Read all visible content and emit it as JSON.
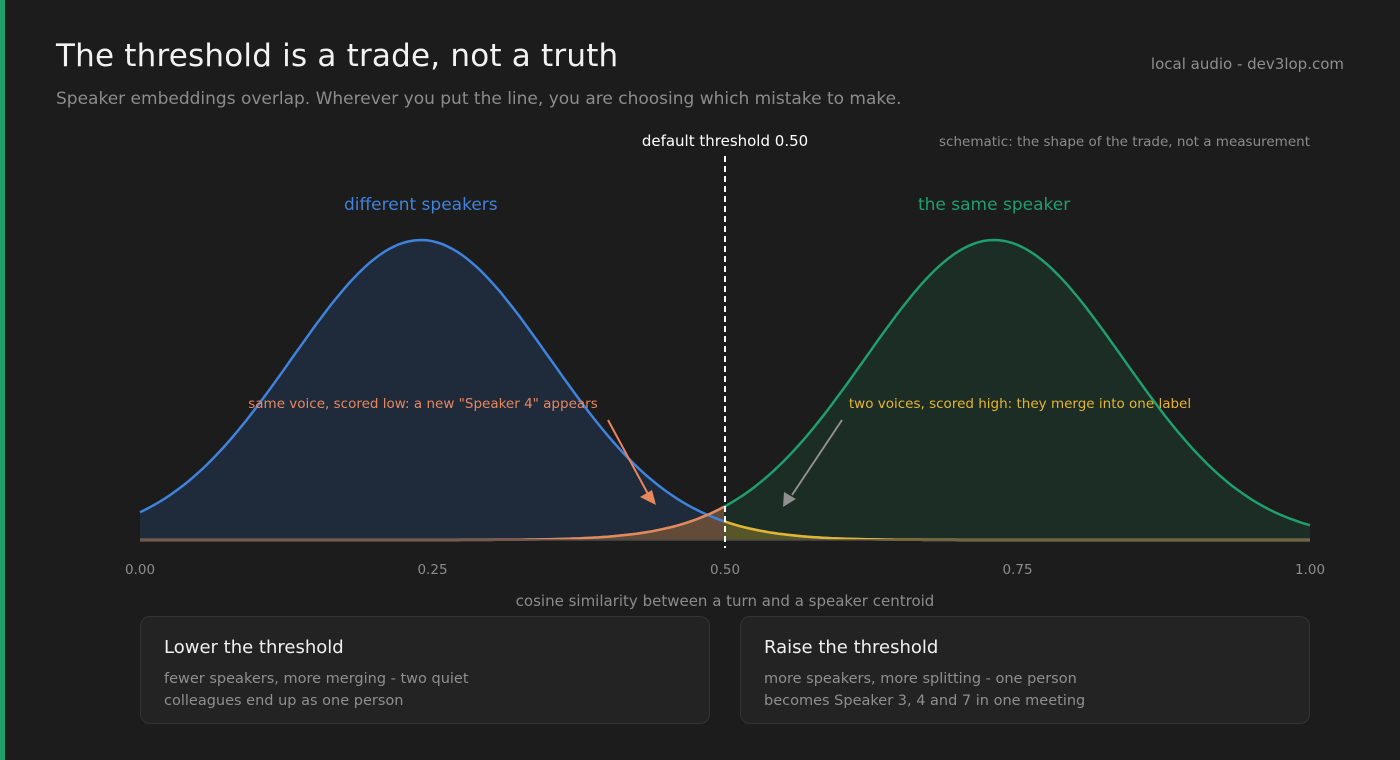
{
  "header": {
    "title": "The threshold is a trade, not a truth",
    "subtitle": "Speaker embeddings overlap. Wherever you put the line, you are choosing which mistake to make.",
    "source": "local audio - dev3lop.com"
  },
  "chart_data": {
    "type": "area",
    "xlabel": "cosine similarity between a turn and a speaker centroid",
    "xlim": [
      0,
      1
    ],
    "x_ticks": [
      "0.00",
      "0.25",
      "0.50",
      "0.75",
      "1.00"
    ],
    "note": "schematic: the shape of the trade, not a measurement",
    "series": [
      {
        "name": "different speakers",
        "mean": 0.24,
        "sd": 0.11,
        "color": "#3f83dc",
        "fill": "#1f2a3b"
      },
      {
        "name": "the same speaker",
        "mean": 0.73,
        "sd": 0.11,
        "color": "#1f9e6e",
        "fill": "#1b2d25"
      }
    ],
    "threshold": {
      "value": 0.5,
      "label": "default threshold 0.50"
    },
    "overlap_colors": {
      "below": "#e8875e",
      "above": "#e6b530"
    },
    "annotations": [
      {
        "text": "same voice, scored low: a new \"Speaker 4\" appears",
        "color": "#e8875e"
      },
      {
        "text": "two voices, scored high: they merge into one label",
        "color": "#e6b530"
      }
    ]
  },
  "cards": {
    "lower": {
      "title": "Lower the threshold",
      "body": "fewer speakers, more merging - two quiet colleagues end up as one person"
    },
    "raise": {
      "title": "Raise the threshold",
      "body": "more speakers, more splitting - one person becomes Speaker 3, 4 and 7 in one meeting"
    }
  }
}
